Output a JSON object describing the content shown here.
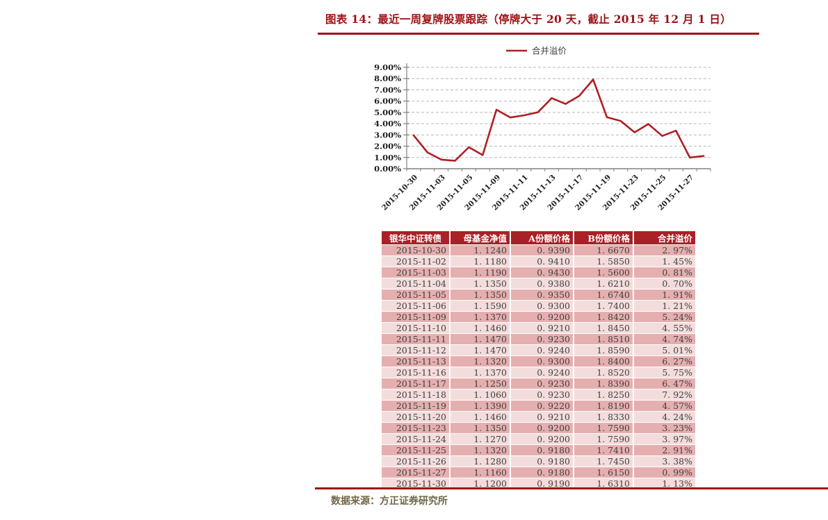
{
  "title": "图表 14：最近一周复牌股票跟踪（停牌大于 20 天，截止 2015 年 12 月 1 日）",
  "source": "数据来源：方正证券研究所",
  "colors": {
    "accent_red": "#9E1013",
    "line_red": "#B01E24",
    "header_bg": "#A92026",
    "row_odd": "#E5AFB0",
    "row_even": "#F3DDDC",
    "axis_gray": "#808080",
    "grid_gray": "#B7B7B7",
    "tick_label": "#1F1F1F",
    "legend_text": "#3F3F3F",
    "footer_text": "#6F6747"
  },
  "chart_data": {
    "type": "line",
    "title": "",
    "legend": [
      "合并溢价"
    ],
    "legend_position": "top-center",
    "x": [
      "2015-10-30",
      "2015-11-02",
      "2015-11-03",
      "2015-11-04",
      "2015-11-05",
      "2015-11-06",
      "2015-11-09",
      "2015-11-10",
      "2015-11-11",
      "2015-11-12",
      "2015-11-13",
      "2015-11-16",
      "2015-11-17",
      "2015-11-18",
      "2015-11-19",
      "2015-11-20",
      "2015-11-23",
      "2015-11-24",
      "2015-11-25",
      "2015-11-26",
      "2015-11-27",
      "2015-11-30"
    ],
    "x_label_every": 2,
    "series": [
      {
        "name": "合并溢价",
        "values": [
          2.97,
          1.45,
          0.81,
          0.7,
          1.91,
          1.21,
          5.24,
          4.55,
          4.74,
          5.01,
          6.27,
          5.75,
          6.47,
          7.92,
          4.57,
          4.24,
          3.23,
          3.97,
          2.91,
          3.38,
          0.99,
          1.13
        ]
      }
    ],
    "ylim": [
      0,
      9
    ],
    "y_tick_step": 1,
    "y_tick_suffix": "%",
    "y_tick_decimals": 2,
    "grid": "horizontal-dashed"
  },
  "table": {
    "header": [
      "银华中证转债",
      "母基金净值",
      "A份额价格",
      "B份额价格",
      "合并溢价"
    ],
    "rows": [
      [
        "2015-10-30",
        "1. 1240",
        "0. 9390",
        "1. 6670",
        "2. 97%"
      ],
      [
        "2015-11-02",
        "1. 1180",
        "0. 9410",
        "1. 5850",
        "1. 45%"
      ],
      [
        "2015-11-03",
        "1. 1190",
        "0. 9430",
        "1. 5600",
        "0. 81%"
      ],
      [
        "2015-11-04",
        "1. 1350",
        "0. 9380",
        "1. 6210",
        "0. 70%"
      ],
      [
        "2015-11-05",
        "1. 1350",
        "0. 9350",
        "1. 6740",
        "1. 91%"
      ],
      [
        "2015-11-06",
        "1. 1590",
        "0. 9300",
        "1. 7400",
        "1. 21%"
      ],
      [
        "2015-11-09",
        "1. 1370",
        "0. 9200",
        "1. 8420",
        "5. 24%"
      ],
      [
        "2015-11-10",
        "1. 1460",
        "0. 9210",
        "1. 8450",
        "4. 55%"
      ],
      [
        "2015-11-11",
        "1. 1470",
        "0. 9230",
        "1. 8510",
        "4. 74%"
      ],
      [
        "2015-11-12",
        "1. 1470",
        "0. 9240",
        "1. 8590",
        "5. 01%"
      ],
      [
        "2015-11-13",
        "1. 1320",
        "0. 9300",
        "1. 8400",
        "6. 27%"
      ],
      [
        "2015-11-16",
        "1. 1370",
        "0. 9240",
        "1. 8520",
        "5. 75%"
      ],
      [
        "2015-11-17",
        "1. 1250",
        "0. 9230",
        "1. 8390",
        "6. 47%"
      ],
      [
        "2015-11-18",
        "1. 1060",
        "0. 9230",
        "1. 8250",
        "7. 92%"
      ],
      [
        "2015-11-19",
        "1. 1390",
        "0. 9220",
        "1. 8190",
        "4. 57%"
      ],
      [
        "2015-11-20",
        "1. 1460",
        "0. 9210",
        "1. 8330",
        "4. 24%"
      ],
      [
        "2015-11-23",
        "1. 1350",
        "0. 9200",
        "1. 7590",
        "3. 23%"
      ],
      [
        "2015-11-24",
        "1. 1270",
        "0. 9200",
        "1. 7590",
        "3. 97%"
      ],
      [
        "2015-11-25",
        "1. 1320",
        "0. 9180",
        "1. 7410",
        "2. 91%"
      ],
      [
        "2015-11-26",
        "1. 1280",
        "0. 9180",
        "1. 7450",
        "3. 38%"
      ],
      [
        "2015-11-27",
        "1. 1160",
        "0. 9180",
        "1. 6150",
        "0. 99%"
      ],
      [
        "2015-11-30",
        "1. 1200",
        "0. 9190",
        "1. 6310",
        "1. 13%"
      ]
    ]
  }
}
